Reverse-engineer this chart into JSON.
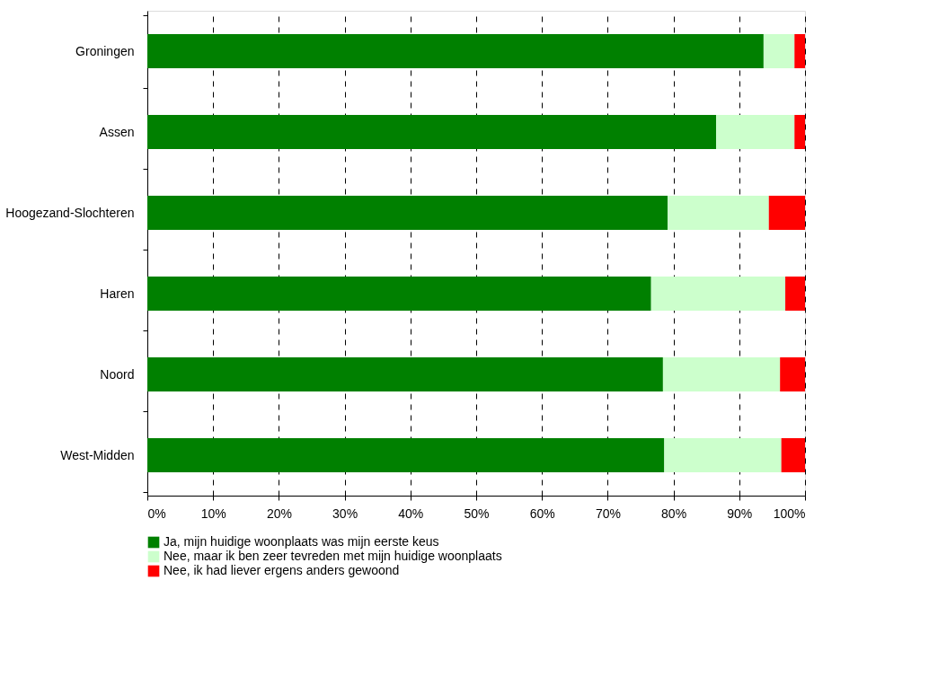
{
  "chart_data": {
    "type": "bar",
    "orientation": "horizontal",
    "stacked": true,
    "categories": [
      "Groningen",
      "Assen",
      "Hoogezand-Slochteren",
      "Haren",
      "Noord",
      "West-Midden"
    ],
    "series": [
      {
        "name": "Ja, mijn huidige woonplaats was mijn eerste keus",
        "color": "#008000",
        "values": [
          93.7,
          86.5,
          79.1,
          76.6,
          78.4,
          78.6
        ]
      },
      {
        "name": "Nee, maar ik ben zeer tevreden met mijn huidige woonplaats",
        "color": "#ccffcc",
        "values": [
          4.7,
          11.9,
          15.4,
          20.4,
          17.8,
          17.8
        ]
      },
      {
        "name": "Nee, ik had liever ergens anders gewoond",
        "color": "#ff0000",
        "values": [
          1.6,
          1.6,
          5.5,
          3.0,
          3.8,
          3.6
        ]
      }
    ],
    "xlim": [
      0,
      100
    ],
    "xticks": [
      {
        "value": 0,
        "label": "0%"
      },
      {
        "value": 10,
        "label": "10%"
      },
      {
        "value": 20,
        "label": "20%"
      },
      {
        "value": 30,
        "label": "30%"
      },
      {
        "value": 40,
        "label": "40%"
      },
      {
        "value": 50,
        "label": "50%"
      },
      {
        "value": 60,
        "label": "60%"
      },
      {
        "value": 70,
        "label": "70%"
      },
      {
        "value": 80,
        "label": "80%"
      },
      {
        "value": 90,
        "label": "90%"
      },
      {
        "value": 100,
        "label": "100%"
      }
    ],
    "grid": "x",
    "legend": "bottom"
  }
}
